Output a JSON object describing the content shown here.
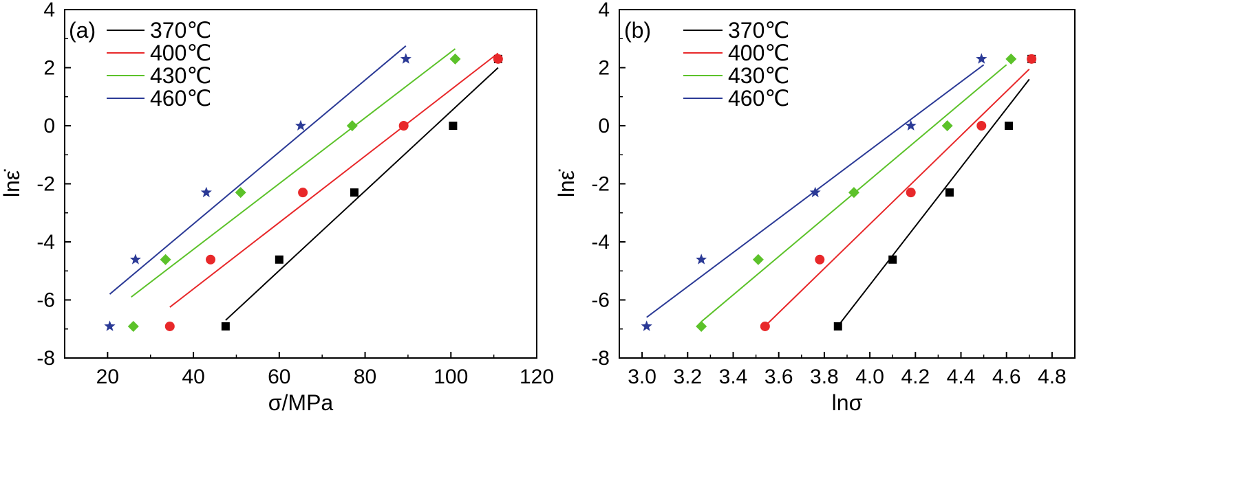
{
  "figure": {
    "colors": {
      "370": "#000000",
      "400": "#e8282a",
      "430": "#5cc22a",
      "460": "#2b3a96"
    },
    "markers": {
      "370": "square",
      "400": "circle",
      "430": "diamond",
      "460": "star"
    }
  },
  "chart_data": [
    {
      "type": "scatter",
      "panel_label": "(a)",
      "xlabel": "σ/MPa",
      "ylabel": "lnε̇",
      "xlim": [
        10,
        120
      ],
      "ylim": [
        -8,
        4
      ],
      "xticks": [
        "20",
        "40",
        "60",
        "80",
        "100",
        "120"
      ],
      "yticks": [
        "-8",
        "-6",
        "-4",
        "-2",
        "0",
        "2",
        "4"
      ],
      "legend": {
        "placement": "top-left"
      },
      "series": [
        {
          "name": "370℃",
          "x": [
            47.5,
            60,
            77.5,
            100.5,
            111
          ],
          "y": [
            -6.91,
            -4.61,
            -2.3,
            0,
            2.3
          ],
          "fit_x": [
            47.5,
            111
          ],
          "fit_y": [
            -6.7,
            2.0
          ]
        },
        {
          "name": "400℃",
          "x": [
            34.5,
            44,
            65.5,
            89,
            111
          ],
          "y": [
            -6.91,
            -4.61,
            -2.3,
            0,
            2.3
          ],
          "fit_x": [
            34.5,
            111
          ],
          "fit_y": [
            -6.25,
            2.5
          ]
        },
        {
          "name": "430℃",
          "x": [
            26,
            33.5,
            51,
            77,
            101
          ],
          "y": [
            -6.91,
            -4.61,
            -2.3,
            0,
            2.3
          ],
          "fit_x": [
            25.5,
            101
          ],
          "fit_y": [
            -5.9,
            2.65
          ]
        },
        {
          "name": "460℃",
          "x": [
            20.5,
            26.5,
            43,
            65,
            89.5
          ],
          "y": [
            -6.91,
            -4.61,
            -2.3,
            0,
            2.3
          ],
          "fit_x": [
            20.5,
            89.5
          ],
          "fit_y": [
            -5.8,
            2.75
          ]
        }
      ]
    },
    {
      "type": "scatter",
      "panel_label": "(b)",
      "xlabel": "lnσ",
      "ylabel": "lnε̇",
      "xlim": [
        2.9,
        4.9
      ],
      "ylim": [
        -8,
        4
      ],
      "xticks": [
        "3.0",
        "3.2",
        "3.4",
        "3.6",
        "3.8",
        "4.0",
        "4.2",
        "4.4",
        "4.6",
        "4.8"
      ],
      "yticks": [
        "-8",
        "-6",
        "-4",
        "-2",
        "0",
        "2",
        "4"
      ],
      "legend": {
        "placement": "top-left"
      },
      "series": [
        {
          "name": "370℃",
          "x": [
            3.86,
            4.1,
            4.35,
            4.61,
            4.71
          ],
          "y": [
            -6.91,
            -4.61,
            -2.3,
            0,
            2.3
          ],
          "fit_x": [
            3.86,
            4.7
          ],
          "fit_y": [
            -6.9,
            1.6
          ]
        },
        {
          "name": "400℃",
          "x": [
            3.54,
            3.78,
            4.18,
            4.49,
            4.71
          ],
          "y": [
            -6.91,
            -4.61,
            -2.3,
            0,
            2.3
          ],
          "fit_x": [
            3.54,
            4.7
          ],
          "fit_y": [
            -6.9,
            1.95
          ]
        },
        {
          "name": "430℃",
          "x": [
            3.26,
            3.51,
            3.93,
            4.34,
            4.62
          ],
          "y": [
            -6.91,
            -4.61,
            -2.3,
            0,
            2.3
          ],
          "fit_x": [
            3.26,
            4.6
          ],
          "fit_y": [
            -6.75,
            2.1
          ]
        },
        {
          "name": "460℃",
          "x": [
            3.02,
            3.26,
            3.76,
            4.18,
            4.49
          ],
          "y": [
            -6.91,
            -4.61,
            -2.3,
            0,
            2.3
          ],
          "fit_x": [
            3.02,
            4.5
          ],
          "fit_y": [
            -6.6,
            2.1
          ]
        }
      ]
    }
  ]
}
